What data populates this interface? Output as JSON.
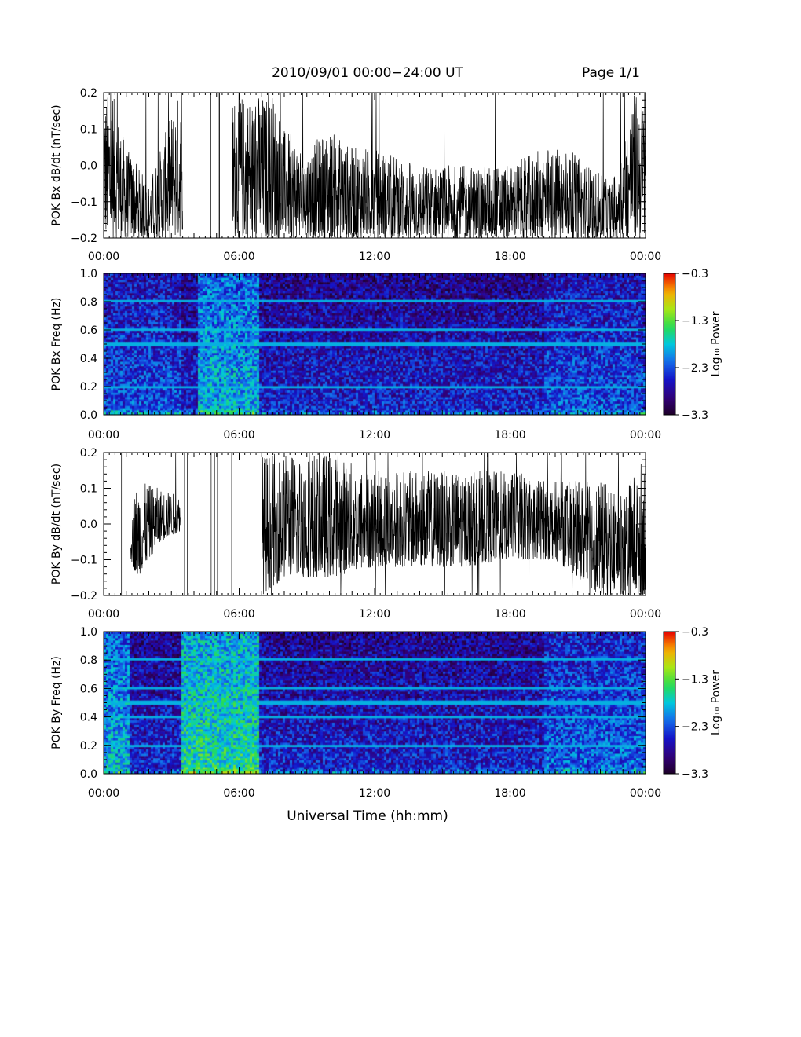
{
  "header": {
    "title": "2010/09/01  00:00−24:00 UT",
    "page": "Page 1/1"
  },
  "x_axis": {
    "label": "Universal Time (hh:mm)",
    "ticks": [
      "00:00",
      "06:00",
      "12:00",
      "18:00",
      "00:00"
    ],
    "range_hours": [
      0,
      24
    ]
  },
  "colorbar": {
    "label": "Log₁₀ Power",
    "ticks": [
      "−0.3",
      "−1.3",
      "−2.3",
      "−3.3"
    ],
    "tick_values": [
      -0.3,
      -1.3,
      -2.3,
      -3.3
    ],
    "range": [
      -3.3,
      -0.3
    ],
    "colormap": "rainbow"
  },
  "chart_data": [
    {
      "type": "line",
      "ylabel": "POK Bx dB/dt (nT/sec)",
      "ylim": [
        -0.2,
        0.2
      ],
      "yticks": [
        "0.2",
        "0.1",
        "0.0",
        "−0.1",
        "−0.2"
      ],
      "ytick_values": [
        0.2,
        0.1,
        0.0,
        -0.1,
        -0.2
      ],
      "xlim_hours": [
        0,
        24
      ],
      "activity_envelope": {
        "hours": [
          0,
          0.4,
          1.0,
          2.0,
          3.3,
          3.5,
          4.4,
          5.7,
          6.3,
          7.0,
          7.5,
          8.0,
          9.0,
          10.0,
          11.0,
          12.0,
          14.0,
          16.0,
          18.0,
          19.5,
          20.5,
          21.5,
          22.5,
          23.5,
          24
        ],
        "upper": [
          0.2,
          0.2,
          0.05,
          -0.05,
          0.2,
          0.2,
          null,
          0.2,
          0.2,
          0.2,
          0.2,
          0.1,
          0.05,
          0.1,
          0.05,
          0.05,
          0.0,
          0.0,
          0.0,
          0.05,
          0.05,
          0.0,
          -0.05,
          0.2,
          0.2
        ],
        "lower": [
          -0.2,
          -0.2,
          -0.2,
          -0.2,
          -0.2,
          -0.2,
          null,
          -0.2,
          -0.2,
          -0.2,
          -0.2,
          -0.2,
          -0.2,
          -0.2,
          -0.2,
          -0.2,
          -0.2,
          -0.2,
          -0.2,
          -0.2,
          -0.2,
          -0.2,
          -0.2,
          -0.2,
          -0.2
        ]
      },
      "data_gaps_hours": [
        [
          4.4,
          5.7
        ]
      ]
    },
    {
      "type": "heatmap",
      "ylabel": "POK Bx Freq (Hz)",
      "ylim": [
        0.0,
        1.0
      ],
      "yticks": [
        "1.0",
        "0.8",
        "0.6",
        "0.4",
        "0.2",
        "0.0"
      ],
      "ytick_values": [
        1.0,
        0.8,
        0.6,
        0.4,
        0.2,
        0.0
      ],
      "xlim_hours": [
        0,
        24
      ],
      "zlim": [
        -3.3,
        -0.3
      ],
      "background_log_power": -2.5,
      "high_power_intervals_hours": [
        [
          0.0,
          3.4,
          -2.3
        ],
        [
          4.2,
          6.9,
          -1.9
        ],
        [
          19.5,
          24.0,
          -2.3
        ]
      ],
      "spectral_lines_hz": [
        0.2,
        0.5,
        0.6,
        0.8
      ],
      "low_frequency_enhancement": "0.0-0.05 Hz, up to -0.8"
    },
    {
      "type": "line",
      "ylabel": "POK By dB/dt (nT/sec)",
      "ylim": [
        -0.2,
        0.2
      ],
      "yticks": [
        "0.2",
        "0.1",
        "0.0",
        "−0.1",
        "−0.2"
      ],
      "ytick_values": [
        0.2,
        0.1,
        0.0,
        -0.1,
        -0.2
      ],
      "xlim_hours": [
        0,
        24
      ],
      "activity_envelope": {
        "hours": [
          0,
          1.2,
          1.5,
          2.5,
          3.4,
          5.7,
          7.0,
          8.0,
          10.0,
          12.0,
          14.0,
          16.0,
          18.0,
          20.0,
          22.0,
          23.0,
          24
        ],
        "upper": [
          null,
          0.05,
          0.12,
          0.1,
          0.08,
          null,
          0.2,
          0.2,
          0.2,
          0.15,
          0.15,
          0.15,
          0.15,
          0.12,
          0.12,
          0.1,
          0.2
        ],
        "lower": [
          null,
          -0.1,
          -0.15,
          -0.05,
          -0.02,
          null,
          -0.2,
          -0.15,
          -0.15,
          -0.12,
          -0.12,
          -0.12,
          -0.1,
          -0.1,
          -0.2,
          -0.2,
          -0.2
        ]
      },
      "data_gaps_hours": [
        [
          0,
          1.2
        ],
        [
          3.4,
          5.7
        ]
      ]
    },
    {
      "type": "heatmap",
      "ylabel": "POK By Freq (Hz)",
      "ylim": [
        0.0,
        1.0
      ],
      "yticks": [
        "1.0",
        "0.8",
        "0.6",
        "0.4",
        "0.2",
        "0.0"
      ],
      "ytick_values": [
        1.0,
        0.8,
        0.6,
        0.4,
        0.2,
        0.0
      ],
      "xlim_hours": [
        0,
        24
      ],
      "zlim": [
        -3.3,
        -0.3
      ],
      "background_log_power": -2.5,
      "high_power_intervals_hours": [
        [
          0.0,
          1.2,
          -1.9
        ],
        [
          3.4,
          6.9,
          -1.6
        ],
        [
          19.5,
          24.0,
          -2.2
        ]
      ],
      "spectral_lines_hz": [
        0.2,
        0.4,
        0.5,
        0.6,
        0.8
      ],
      "low_frequency_enhancement": "0.0-0.05 Hz, up to -0.8"
    }
  ]
}
